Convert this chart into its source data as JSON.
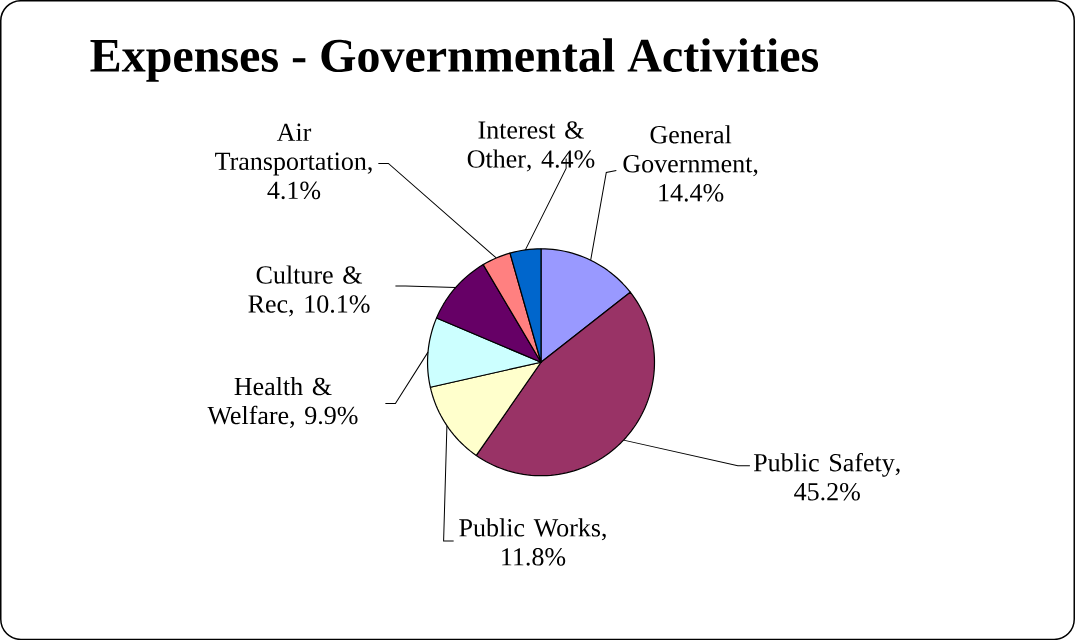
{
  "chart_data": {
    "type": "pie",
    "title": "Expenses - Governmental Activities",
    "categories": [
      "General Government",
      "Public Safety",
      "Public Works",
      "Health & Welfare",
      "Culture & Rec",
      "Air Transportation",
      "Interest & Other"
    ],
    "values": [
      14.4,
      45.2,
      11.8,
      9.9,
      10.1,
      4.1,
      4.4
    ],
    "value_labels": [
      ", 14.4%",
      ", 45.2%",
      ", 11.8%",
      ", 9.9%",
      ", 10.1%",
      ", 4.1%",
      ", 4.4%"
    ],
    "colors": [
      "#9999ff",
      "#993366",
      "#ffffcc",
      "#ccffff",
      "#660066",
      "#ff8080",
      "#0066cc"
    ]
  }
}
